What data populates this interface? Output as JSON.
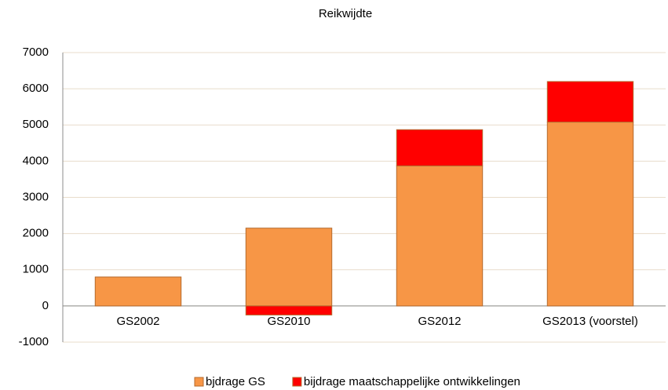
{
  "chart_data": {
    "type": "stacked_bar",
    "title": "Reikwijdte",
    "categories": [
      "GS2002",
      "GS2010",
      "GS2012",
      "GS2013 (voorstel)"
    ],
    "series": [
      {
        "name": "bjdrage GS",
        "color": "#f79646",
        "values": [
          800,
          2150,
          3870,
          5080
        ]
      },
      {
        "name": "bijdrage maatschappelijke ontwikkelingen",
        "color": "#ff0000",
        "values": [
          0,
          -250,
          1000,
          1120
        ]
      }
    ],
    "ylim": [
      -1000,
      7000
    ],
    "yticks": [
      -1000,
      0,
      1000,
      2000,
      3000,
      4000,
      5000,
      6000,
      7000
    ],
    "grid": true,
    "legend": "bottom"
  }
}
